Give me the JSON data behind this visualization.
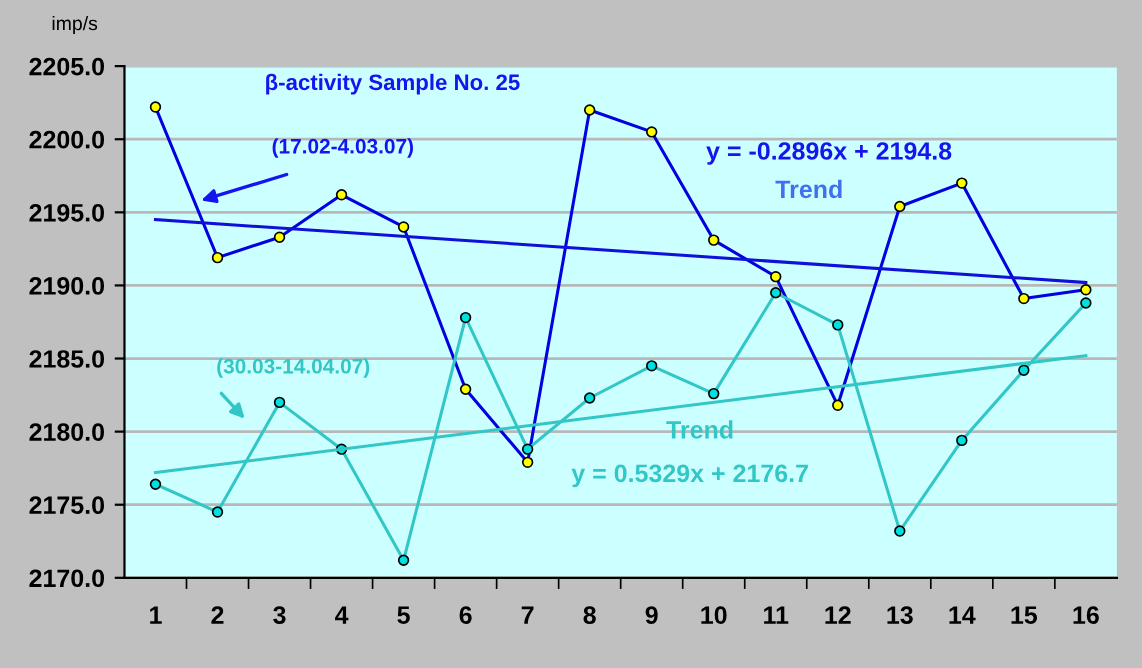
{
  "chart_data": {
    "type": "line",
    "title": "β-activity Sample No. 25",
    "ylabel": "imp/s",
    "categories": [
      "1",
      "2",
      "3",
      "4",
      "5",
      "6",
      "7",
      "8",
      "9",
      "10",
      "11",
      "12",
      "13",
      "14",
      "15",
      "16"
    ],
    "series": [
      {
        "color": "#0000e0",
        "marker": "circle",
        "values": [
          2202.2,
          2191.9,
          2193.3,
          2196.2,
          2194.0,
          2182.9,
          2177.9,
          2202.0,
          2200.5,
          2193.1,
          2190.6,
          2181.8,
          2195.4,
          2197.0,
          2189.1,
          2189.7
        ]
      },
      {
        "color": "#33c6c6",
        "marker": "circle",
        "values": [
          2176.4,
          2174.5,
          2182.0,
          2178.8,
          2171.2,
          2187.8,
          2178.8,
          2182.3,
          2184.5,
          2182.6,
          2189.5,
          2187.3,
          2173.2,
          2179.4,
          2184.2,
          2188.8
        ]
      },
      {
        "color": "#1010d8",
        "marker": "none",
        "values": [
          2194.5,
          null,
          null,
          null,
          null,
          null,
          null,
          null,
          null,
          null,
          null,
          null,
          null,
          null,
          null,
          2190.2
        ]
      },
      {
        "color": "#33c6c6",
        "marker": "none",
        "values": [
          2177.2,
          null,
          null,
          null,
          null,
          null,
          null,
          null,
          null,
          null,
          null,
          null,
          null,
          null,
          null,
          2185.2
        ]
      }
    ],
    "ylim": [
      2170,
      2205
    ],
    "yticks": [
      {
        "value": 2170,
        "label": "2170.0"
      },
      {
        "value": 2175,
        "label": "2175.0"
      },
      {
        "value": 2180,
        "label": "2180.0"
      },
      {
        "value": 2185,
        "label": "2185.0"
      },
      {
        "value": 2190,
        "label": "2190.0"
      },
      {
        "value": 2195,
        "label": "2195.0"
      },
      {
        "value": 2200,
        "label": "2200.0"
      },
      {
        "value": 2205,
        "label": "2205.0"
      }
    ],
    "grid": "y",
    "legend": false,
    "annotations": [
      "(17.02-4.03.07)",
      "y = -0.2896x + 2194.8",
      "Trend",
      "(30.03-14.04.07)",
      "Trend",
      "y = 0.5329x + 2176.7"
    ]
  }
}
